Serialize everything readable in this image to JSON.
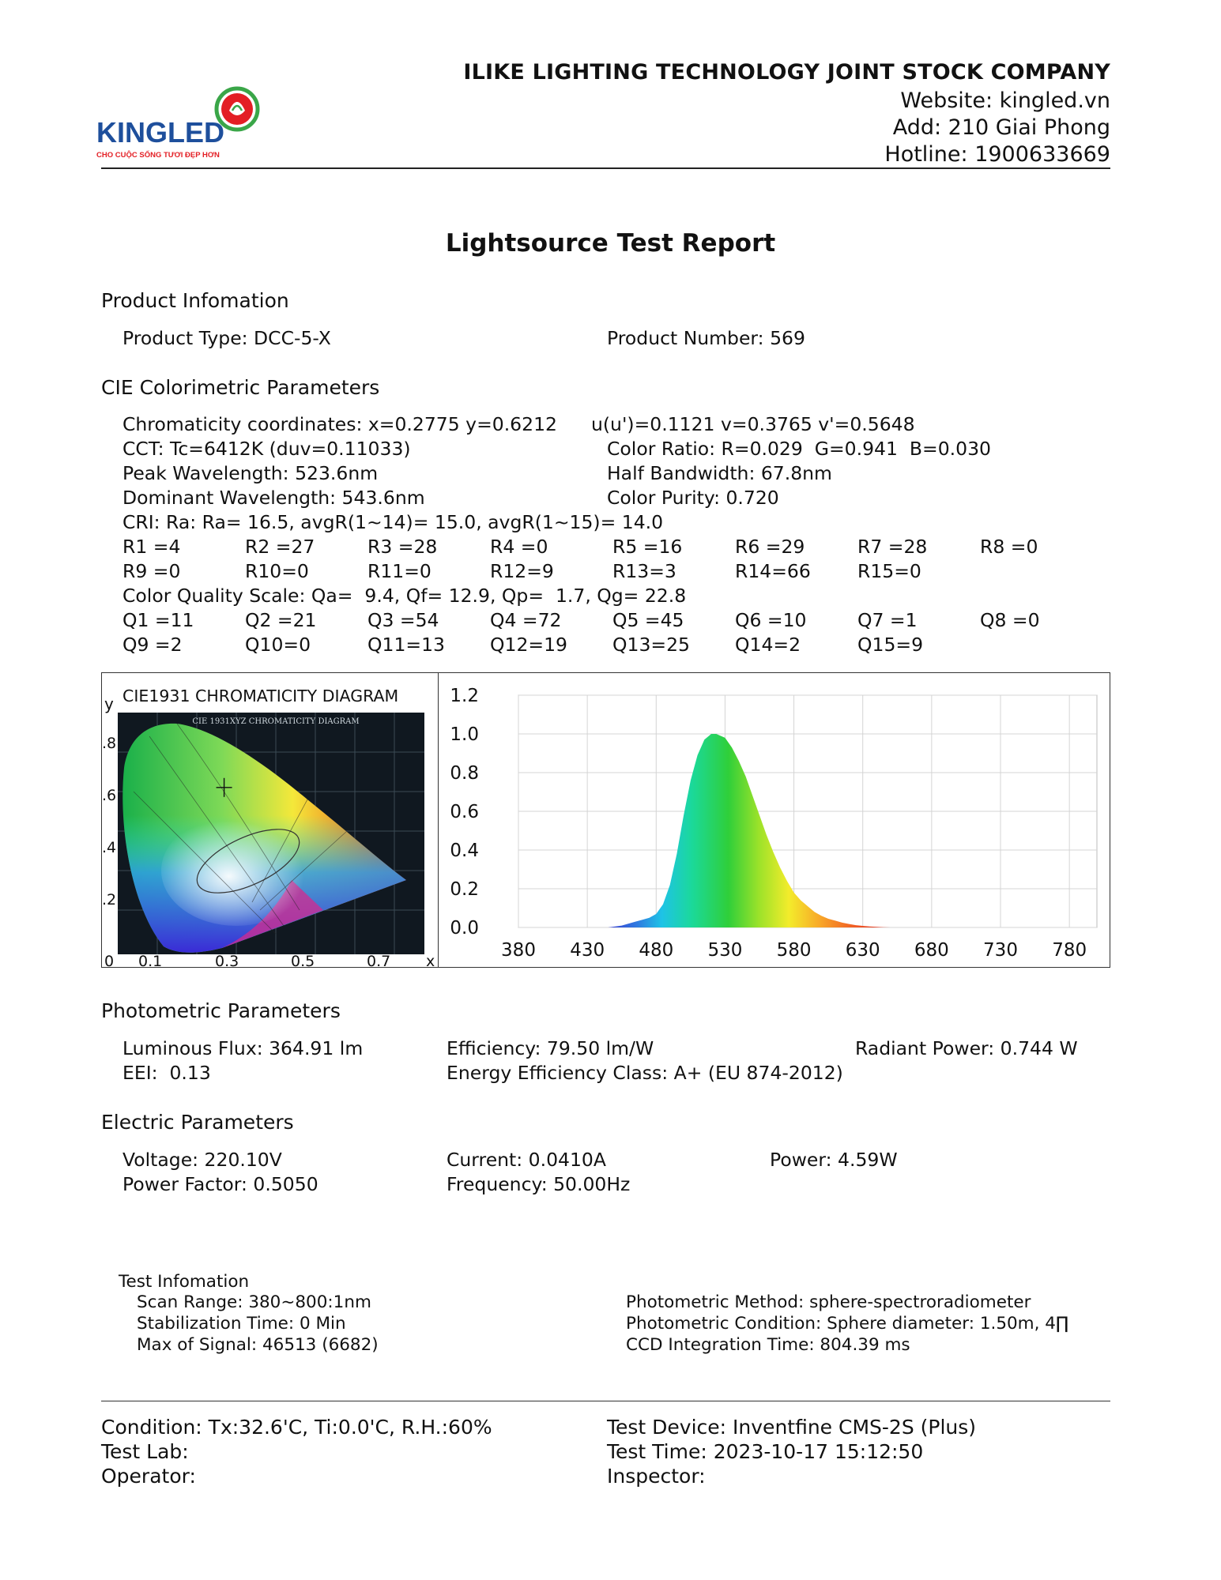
{
  "header": {
    "logo_text": "KINGLED",
    "logo_tagline": "CHO CUỘC SỐNG TƯƠI ĐẸP HƠN",
    "company_name": "ILIKE LIGHTING TECHNOLOGY JOINT STOCK COMPANY",
    "website": "Website: kingled.vn",
    "address": "Add: 210 Giai Phong",
    "hotline": "Hotline: 1900633669"
  },
  "title": "Lightsource Test Report",
  "product": {
    "heading": "Product Infomation",
    "type": "Product Type: DCC-5-X",
    "number": "Product Number: 569"
  },
  "cie": {
    "heading": "CIE Colorimetric Parameters",
    "chromaticity": "Chromaticity coordinates: x=0.2775 y=0.6212",
    "uv": "u(u')=0.1121 v=0.3765 v'=0.5648",
    "cct": "CCT: Tc=6412K (duv=0.11033)",
    "color_ratio": "Color Ratio: R=0.029  G=0.941  B=0.030",
    "peak": "Peak Wavelength: 523.6nm",
    "half_bw": "Half Bandwidth: 67.8nm",
    "dominant": "Dominant Wavelength: 543.6nm",
    "purity": "Color Purity: 0.720",
    "cri": "CRI: Ra: Ra= 16.5, avgR(1~14)= 15.0, avgR(1~15)= 14.0",
    "r_row1": [
      "R1 =4",
      "R2 =27",
      "R3 =28",
      "R4 =0",
      "R5 =16",
      "R6 =29",
      "R7 =28",
      "R8 =0"
    ],
    "r_row2": [
      "R9 =0",
      "R10=0",
      "R11=0",
      "R12=9",
      "R13=3",
      "R14=66",
      "R15=0"
    ],
    "cqs": "Color Quality Scale: Qa=  9.4, Qf= 12.9, Qp=  1.7, Qg= 22.8",
    "q_row1": [
      "Q1 =11",
      "Q2 =21",
      "Q3 =54",
      "Q4 =72",
      "Q5 =45",
      "Q6 =10",
      "Q7 =1",
      "Q8 =0"
    ],
    "q_row2": [
      "Q9 =2",
      "Q10=0",
      "Q11=13",
      "Q12=19",
      "Q13=25",
      "Q14=2",
      "Q15=9"
    ]
  },
  "cie_diagram": {
    "title": "CIE1931 CHROMATICITY DIAGRAM",
    "inner_title": "CIE 1931XYZ CHROMATICITY DIAGRAM",
    "y_label": "y",
    "x_label": "x",
    "y_ticks": [
      ".8",
      ".6",
      ".4",
      ".2"
    ],
    "x_ticks": [
      "0",
      "0.1",
      "0.3",
      "0.5",
      "0.7"
    ],
    "point": {
      "x": 0.2775,
      "y": 0.6212
    }
  },
  "chart_data": {
    "type": "area",
    "xlabel": "",
    "ylabel": "",
    "xlim": [
      380,
      800
    ],
    "ylim": [
      0,
      1.2
    ],
    "x_ticks": [
      "380",
      "430",
      "480",
      "530",
      "580",
      "630",
      "680",
      "730",
      "780"
    ],
    "y_ticks": [
      "1.2",
      "1.0",
      "0.8",
      "0.6",
      "0.4",
      "0.2",
      "0.0"
    ],
    "grid": true,
    "x": [
      445,
      455,
      460,
      465,
      470,
      475,
      480,
      485,
      490,
      495,
      500,
      505,
      510,
      515,
      520,
      523.6,
      530,
      535,
      540,
      545,
      550,
      555,
      560,
      565,
      570,
      575,
      580,
      585,
      590,
      595,
      600,
      605,
      610,
      615,
      620,
      625,
      630,
      635,
      640,
      645,
      650
    ],
    "values": [
      0.0,
      0.01,
      0.02,
      0.03,
      0.04,
      0.05,
      0.07,
      0.12,
      0.22,
      0.38,
      0.58,
      0.76,
      0.89,
      0.97,
      1.0,
      1.0,
      0.98,
      0.93,
      0.86,
      0.78,
      0.68,
      0.58,
      0.48,
      0.39,
      0.31,
      0.24,
      0.18,
      0.14,
      0.11,
      0.08,
      0.06,
      0.045,
      0.035,
      0.025,
      0.018,
      0.012,
      0.008,
      0.005,
      0.003,
      0.001,
      0.0
    ]
  },
  "photometric": {
    "heading": "Photometric Parameters",
    "flux": "Luminous Flux: 364.91 lm",
    "efficiency": "Efficiency: 79.50 lm/W",
    "radiant": "Radiant Power: 0.744 W",
    "eei": "EEI:  0.13",
    "energy_class": "Energy Efficiency Class: A+ (EU 874-2012)"
  },
  "electric": {
    "heading": "Electric Parameters",
    "voltage": "Voltage: 220.10V",
    "current": "Current: 0.0410A",
    "power": "Power: 4.59W",
    "pf": "Power Factor: 0.5050",
    "frequency": "Frequency: 50.00Hz"
  },
  "test_info": {
    "heading": "Test Infomation",
    "scan_range": "Scan Range: 380~800:1nm",
    "stabilization": "Stabilization Time: 0 Min",
    "max_signal": "Max of Signal: 46513 (6682)",
    "method": "Photometric Method: sphere-spectroradiometer",
    "condition": "Photometric Condition: Sphere diameter: 1.50m, 4∏",
    "ccd": "CCD Integration Time: 804.39 ms"
  },
  "footer": {
    "condition": "Condition: Tx:32.6'C, Ti:0.0'C, R.H.:60%",
    "device": "Test Device: Inventfine CMS-2S (Plus)",
    "lab": "Test Lab:",
    "time": "Test Time: 2023-10-17 15:12:50",
    "operator": "Operator:",
    "inspector": "Inspector:"
  }
}
